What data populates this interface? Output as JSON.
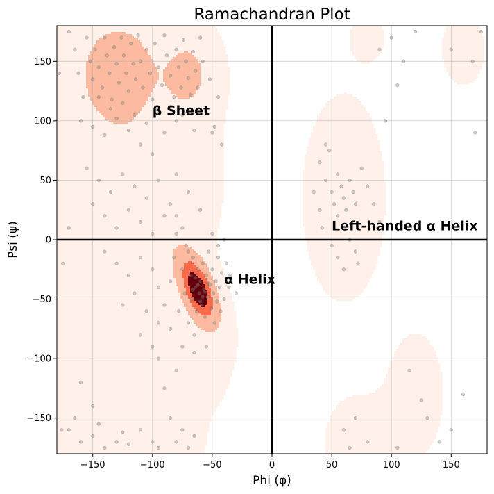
{
  "chart_data": {
    "type": "scatter",
    "title": "Ramachandran Plot",
    "xlabel": "Phi (φ)",
    "ylabel": "Psi (ψ)",
    "xlim": [
      -180,
      180
    ],
    "ylim": [
      -180,
      180
    ],
    "xticks": [
      -150,
      -100,
      -50,
      0,
      50,
      100,
      150
    ],
    "yticks": [
      -150,
      -100,
      -50,
      0,
      50,
      100,
      150
    ],
    "tick_labels_x": [
      "−150",
      "−100",
      "−50",
      "0",
      "50",
      "100",
      "150"
    ],
    "tick_labels_y": [
      "−150",
      "−100",
      "−50",
      "0",
      "50",
      "100",
      "150"
    ],
    "grid": true,
    "reference_lines": {
      "x": 0,
      "y": 0
    },
    "annotations": [
      {
        "text": "β Sheet",
        "x": -100,
        "y": 105
      },
      {
        "text": "α Helix",
        "x": -40,
        "y": -37
      },
      {
        "text": "Left-handed α Helix",
        "x": 50,
        "y": 8
      }
    ],
    "density_colormap": [
      "#fff0e9",
      "#fcbba1",
      "#fb6a4a",
      "#ef3b2c",
      "#67000d"
    ],
    "contour_color": "#808080",
    "point_color": "#808080",
    "density_regions": [
      {
        "name": "alpha",
        "center": [
          -60,
          -40
        ],
        "levels": [
          {
            "rx": 12,
            "ry": 22,
            "rot": 0.15,
            "fill": "#67000d"
          },
          {
            "rx": 28,
            "ry": 45,
            "rot": 0.2,
            "fill": "#fb6a4a"
          },
          {
            "rx": 36,
            "ry": 57,
            "rot": 0.2,
            "fill": "#fcbba1"
          }
        ]
      },
      {
        "name": "beta",
        "center": [
          -128,
          140
        ],
        "levels": [
          {
            "rx": 20,
            "ry": 28,
            "rot": 0,
            "fill": "#fcbba1"
          }
        ]
      },
      {
        "name": "ppii",
        "center": [
          -70,
          140
        ],
        "levels": [
          {
            "rx": 15,
            "ry": 26,
            "rot": 0,
            "fill": "#fcbba1"
          }
        ]
      }
    ],
    "points": [
      [
        -170,
        175
      ],
      [
        -165,
        160
      ],
      [
        -162,
        140
      ],
      [
        -158,
        120
      ],
      [
        -155,
        170
      ],
      [
        -152,
        150
      ],
      [
        -150,
        135
      ],
      [
        -148,
        160
      ],
      [
        -145,
        145
      ],
      [
        -142,
        128
      ],
      [
        -140,
        170
      ],
      [
        -138,
        155
      ],
      [
        -136,
        140
      ],
      [
        -134,
        118
      ],
      [
        -132,
        162
      ],
      [
        -130,
        148
      ],
      [
        -128,
        132
      ],
      [
        -126,
        170
      ],
      [
        -124,
        155
      ],
      [
        -122,
        140
      ],
      [
        -120,
        125
      ],
      [
        -118,
        165
      ],
      [
        -116,
        148
      ],
      [
        -114,
        135
      ],
      [
        -112,
        172
      ],
      [
        -110,
        150
      ],
      [
        -108,
        128
      ],
      [
        -105,
        160
      ],
      [
        -102,
        140
      ],
      [
        -100,
        118
      ],
      [
        -98,
        165
      ],
      [
        -95,
        145
      ],
      [
        -92,
        130
      ],
      [
        -90,
        172
      ],
      [
        -88,
        155
      ],
      [
        -85,
        138
      ],
      [
        -82,
        120
      ],
      [
        -80,
        160
      ],
      [
        -78,
        145
      ],
      [
        -76,
        128
      ],
      [
        -74,
        168
      ],
      [
        -72,
        150
      ],
      [
        -70,
        136
      ],
      [
        -68,
        122
      ],
      [
        -66,
        158
      ],
      [
        -64,
        142
      ],
      [
        -62,
        128
      ],
      [
        -60,
        170
      ],
      [
        -58,
        150
      ],
      [
        -55,
        110
      ],
      [
        -52,
        135
      ],
      [
        -48,
        95
      ],
      [
        -45,
        120
      ],
      [
        -42,
        80
      ],
      [
        -160,
        100
      ],
      [
        -150,
        95
      ],
      [
        -140,
        88
      ],
      [
        -130,
        102
      ],
      [
        -120,
        92
      ],
      [
        -110,
        80
      ],
      [
        -100,
        72
      ],
      [
        -90,
        90
      ],
      [
        -80,
        100
      ],
      [
        -145,
        120
      ],
      [
        -135,
        110
      ],
      [
        -125,
        115
      ],
      [
        -115,
        105
      ],
      [
        -105,
        98
      ],
      [
        -95,
        108
      ],
      [
        -85,
        112
      ],
      [
        -75,
        105
      ],
      [
        -65,
        92
      ],
      [
        -155,
        60
      ],
      [
        -145,
        50
      ],
      [
        -135,
        40
      ],
      [
        -125,
        55
      ],
      [
        -115,
        45
      ],
      [
        -105,
        35
      ],
      [
        -95,
        50
      ],
      [
        -85,
        30
      ],
      [
        -80,
        55
      ],
      [
        -70,
        40
      ],
      [
        -60,
        25
      ],
      [
        -150,
        30
      ],
      [
        -140,
        20
      ],
      [
        -130,
        10
      ],
      [
        -120,
        25
      ],
      [
        -110,
        15
      ],
      [
        -100,
        5
      ],
      [
        -90,
        20
      ],
      [
        -140,
        -10
      ],
      [
        -130,
        -20
      ],
      [
        -120,
        -30
      ],
      [
        -110,
        -15
      ],
      [
        -100,
        -25
      ],
      [
        -95,
        -40
      ],
      [
        -125,
        -55
      ],
      [
        -115,
        -45
      ],
      [
        -105,
        -60
      ],
      [
        -95,
        -70
      ],
      [
        -90,
        -55
      ],
      [
        -110,
        -80
      ],
      [
        -100,
        -90
      ],
      [
        -95,
        -100
      ],
      [
        -85,
        -35
      ],
      [
        -82,
        -15
      ],
      [
        -80,
        5
      ],
      [
        -78,
        -60
      ],
      [
        -75,
        -25
      ],
      [
        -73,
        -45
      ],
      [
        -72,
        -5
      ],
      [
        -70,
        -70
      ],
      [
        -68,
        -30
      ],
      [
        -67,
        -50
      ],
      [
        -66,
        -15
      ],
      [
        -65,
        -80
      ],
      [
        -64,
        -40
      ],
      [
        -63,
        -60
      ],
      [
        -62,
        -25
      ],
      [
        -61,
        -45
      ],
      [
        -60,
        -35
      ],
      [
        -59,
        -55
      ],
      [
        -58,
        -20
      ],
      [
        -57,
        -42
      ],
      [
        -56,
        -65
      ],
      [
        -55,
        -30
      ],
      [
        -54,
        -48
      ],
      [
        -53,
        -10
      ],
      [
        -52,
        -38
      ],
      [
        -51,
        -58
      ],
      [
        -50,
        -25
      ],
      [
        -49,
        -45
      ],
      [
        -48,
        -70
      ],
      [
        -47,
        -35
      ],
      [
        -46,
        -52
      ],
      [
        -45,
        -15
      ],
      [
        -44,
        -40
      ],
      [
        -43,
        -60
      ],
      [
        -42,
        -28
      ],
      [
        -40,
        -50
      ],
      [
        -38,
        -20
      ],
      [
        -36,
        -40
      ],
      [
        -62,
        -38
      ],
      [
        -58,
        -48
      ],
      [
        -66,
        -42
      ],
      [
        -54,
        -36
      ],
      [
        -60,
        -52
      ],
      [
        -64,
        -32
      ],
      [
        -56,
        -44
      ],
      [
        -70,
        -10
      ],
      [
        -75,
        10
      ],
      [
        -80,
        20
      ],
      [
        -50,
        5
      ],
      [
        -45,
        -5
      ],
      [
        -40,
        0
      ],
      [
        -35,
        -30
      ],
      [
        -30,
        -45
      ],
      [
        -85,
        -75
      ],
      [
        -75,
        -90
      ],
      [
        -65,
        -95
      ],
      [
        -55,
        -90
      ],
      [
        -80,
        -110
      ],
      [
        -90,
        -125
      ],
      [
        -160,
        -120
      ],
      [
        -150,
        -140
      ],
      [
        -170,
        -160
      ],
      [
        -160,
        -170
      ],
      [
        -150,
        -165
      ],
      [
        -140,
        -175
      ],
      [
        -130,
        -170
      ],
      [
        -120,
        -172
      ],
      [
        -110,
        -160
      ],
      [
        -100,
        -170
      ],
      [
        -165,
        -150
      ],
      [
        -145,
        -155
      ],
      [
        -125,
        -162
      ],
      [
        -80,
        -170
      ],
      [
        -75,
        -160
      ],
      [
        -70,
        -175
      ],
      [
        -65,
        -165
      ],
      [
        -85,
        -150
      ],
      [
        40,
        65
      ],
      [
        45,
        50
      ],
      [
        50,
        40
      ],
      [
        52,
        30
      ],
      [
        55,
        55
      ],
      [
        58,
        45
      ],
      [
        60,
        35
      ],
      [
        62,
        25
      ],
      [
        65,
        50
      ],
      [
        68,
        40
      ],
      [
        70,
        30
      ],
      [
        55,
        20
      ],
      [
        60,
        10
      ],
      [
        65,
        0
      ],
      [
        70,
        -10
      ],
      [
        72,
        -20
      ],
      [
        48,
        75
      ],
      [
        45,
        80
      ],
      [
        75,
        60
      ],
      [
        80,
        45
      ],
      [
        85,
        30
      ],
      [
        90,
        15
      ],
      [
        35,
        40
      ],
      [
        40,
        25
      ],
      [
        42,
        10
      ],
      [
        50,
        -5
      ],
      [
        55,
        -15
      ],
      [
        60,
        -25
      ],
      [
        95,
        100
      ],
      [
        105,
        130
      ],
      [
        110,
        150
      ],
      [
        100,
        170
      ],
      [
        90,
        160
      ],
      [
        120,
        175
      ],
      [
        150,
        160
      ],
      [
        168,
        150
      ],
      [
        115,
        -110
      ],
      [
        125,
        -135
      ],
      [
        130,
        -150
      ],
      [
        140,
        -170
      ],
      [
        150,
        -160
      ],
      [
        160,
        -130
      ],
      [
        105,
        -175
      ],
      [
        60,
        -160
      ],
      [
        65,
        -175
      ],
      [
        70,
        -150
      ],
      [
        80,
        -170
      ],
      [
        170,
        90
      ],
      [
        -170,
        10
      ],
      [
        -175,
        -20
      ],
      [
        -178,
        140
      ],
      [
        -176,
        -160
      ],
      [
        175,
        175
      ],
      [
        -95,
        -175
      ],
      [
        -50,
        90
      ]
    ]
  }
}
